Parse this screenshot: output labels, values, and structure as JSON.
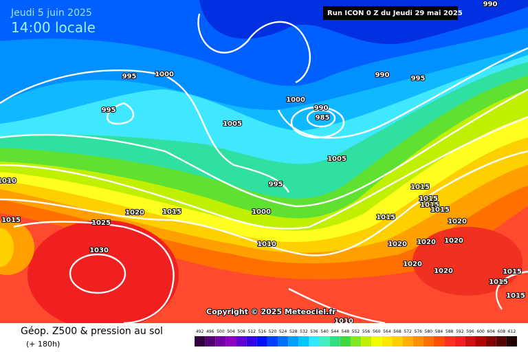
{
  "header": {
    "date": "Jeudi 5 juin 2025",
    "time": "14:00 locale",
    "run": "Run ICON 0 Z du Jeudi 29 mai 2025"
  },
  "copyright": "Copyright © 2025 Meteociel.fr",
  "footer": {
    "title": "Géop. Z500 & pression au sol",
    "lead": "(+ 180h)"
  },
  "isobar_labels": [
    990,
    995,
    1000,
    995,
    990,
    995,
    1000,
    990,
    985,
    1005,
    1005,
    1010,
    995,
    1015,
    1015,
    1015,
    1015,
    1015,
    1020,
    1015,
    1000,
    1025,
    1015,
    1020,
    1010,
    1030,
    1020,
    1020,
    1020,
    1020,
    1020,
    1015,
    1015,
    1015,
    1010
  ],
  "scale": {
    "labels": [
      492,
      496,
      500,
      504,
      508,
      512,
      516,
      520,
      524,
      528,
      532,
      536,
      540,
      544,
      548,
      552,
      556,
      560,
      564,
      568,
      572,
      576,
      580,
      584,
      588,
      592,
      596,
      600,
      604,
      608,
      612
    ],
    "colors": [
      "#300040",
      "#500070",
      "#7000a0",
      "#9000c0",
      "#6000d0",
      "#3000e0",
      "#0010f0",
      "#0040ff",
      "#0070ff",
      "#00a0ff",
      "#00c8ff",
      "#30e8ff",
      "#40f0c0",
      "#30e080",
      "#40d840",
      "#80e820",
      "#c0f000",
      "#f0ff00",
      "#ffe800",
      "#ffd000",
      "#ffb000",
      "#ff9000",
      "#ff7000",
      "#ff5000",
      "#ff3020",
      "#f02020",
      "#d01010",
      "#b00000",
      "#800000",
      "#500000",
      "#200000"
    ]
  }
}
